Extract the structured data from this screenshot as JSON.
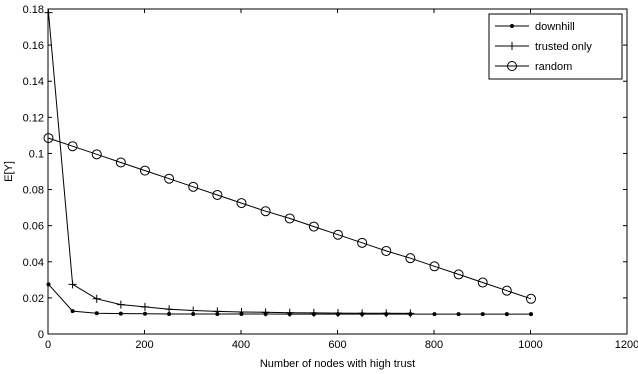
{
  "chart_data": {
    "type": "line",
    "title": "",
    "xlabel": "Number of nodes with high trust",
    "ylabel": "E[Y]",
    "xlim": [
      0,
      1200
    ],
    "ylim": [
      0,
      0.18
    ],
    "xticks": [
      0,
      200,
      400,
      600,
      800,
      1000,
      1200
    ],
    "yticks": [
      0,
      0.02,
      0.04,
      0.06,
      0.08,
      0.1,
      0.12,
      0.14,
      0.16,
      0.18
    ],
    "xtick_labels": [
      "0",
      "200",
      "400",
      "600",
      "800",
      "1000",
      "1200"
    ],
    "ytick_labels": [
      "0",
      "0.02",
      "0.04",
      "0.06",
      "0.08",
      "0.1",
      "0.12",
      "0.14",
      "0.16",
      "0.18"
    ],
    "grid": false,
    "legend_position": "top-right",
    "series": [
      {
        "name": "downhill",
        "marker": "dot",
        "x": [
          1,
          51,
          101,
          151,
          201,
          251,
          301,
          351,
          401,
          451,
          501,
          551,
          601,
          651,
          701,
          751,
          801,
          851,
          901,
          951,
          1001
        ],
        "y": [
          0.0275,
          0.0127,
          0.0115,
          0.0113,
          0.0112,
          0.0111,
          0.0111,
          0.0111,
          0.0111,
          0.0111,
          0.011,
          0.011,
          0.011,
          0.011,
          0.011,
          0.011,
          0.011,
          0.011,
          0.011,
          0.011,
          0.011
        ]
      },
      {
        "name": "trusted only",
        "marker": "plus",
        "x": [
          1,
          51,
          101,
          151,
          201,
          251,
          301,
          351,
          401,
          451,
          501,
          551,
          601,
          651,
          701,
          751
        ],
        "y": [
          0.178,
          0.0275,
          0.0195,
          0.0163,
          0.015,
          0.0137,
          0.013,
          0.0125,
          0.0122,
          0.012,
          0.0118,
          0.0117,
          0.0116,
          0.0115,
          0.0115,
          0.0114
        ]
      },
      {
        "name": "random",
        "marker": "circle",
        "x": [
          1,
          51,
          101,
          151,
          201,
          251,
          301,
          351,
          401,
          451,
          501,
          551,
          601,
          651,
          701,
          751,
          801,
          851,
          901,
          951,
          1001
        ],
        "y": [
          0.1085,
          0.104,
          0.0995,
          0.095,
          0.0905,
          0.086,
          0.0815,
          0.077,
          0.0725,
          0.068,
          0.064,
          0.0595,
          0.055,
          0.0505,
          0.046,
          0.042,
          0.0375,
          0.033,
          0.0285,
          0.024,
          0.0195
        ]
      }
    ]
  }
}
